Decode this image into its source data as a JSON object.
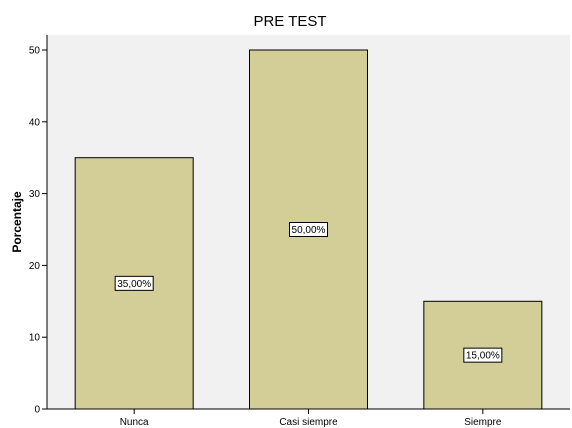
{
  "chart_data": {
    "type": "bar",
    "title": "PRE TEST",
    "xlabel": "",
    "ylabel": "Porcentaje",
    "categories": [
      "Nunca",
      "Casi siempre",
      "Siempre"
    ],
    "values": [
      35,
      50,
      15
    ],
    "data_labels": [
      "35,00%",
      "50,00%",
      "15,00%"
    ],
    "yticks": [
      0,
      10,
      20,
      30,
      40,
      50
    ],
    "ylim": [
      0,
      50
    ],
    "grid": false,
    "legend": "none",
    "colors": {
      "plot_background": "#f1f1f1",
      "bar_fill": "#d3ce97",
      "bar_stroke": "#000000",
      "label_box": "#ffffff"
    }
  }
}
